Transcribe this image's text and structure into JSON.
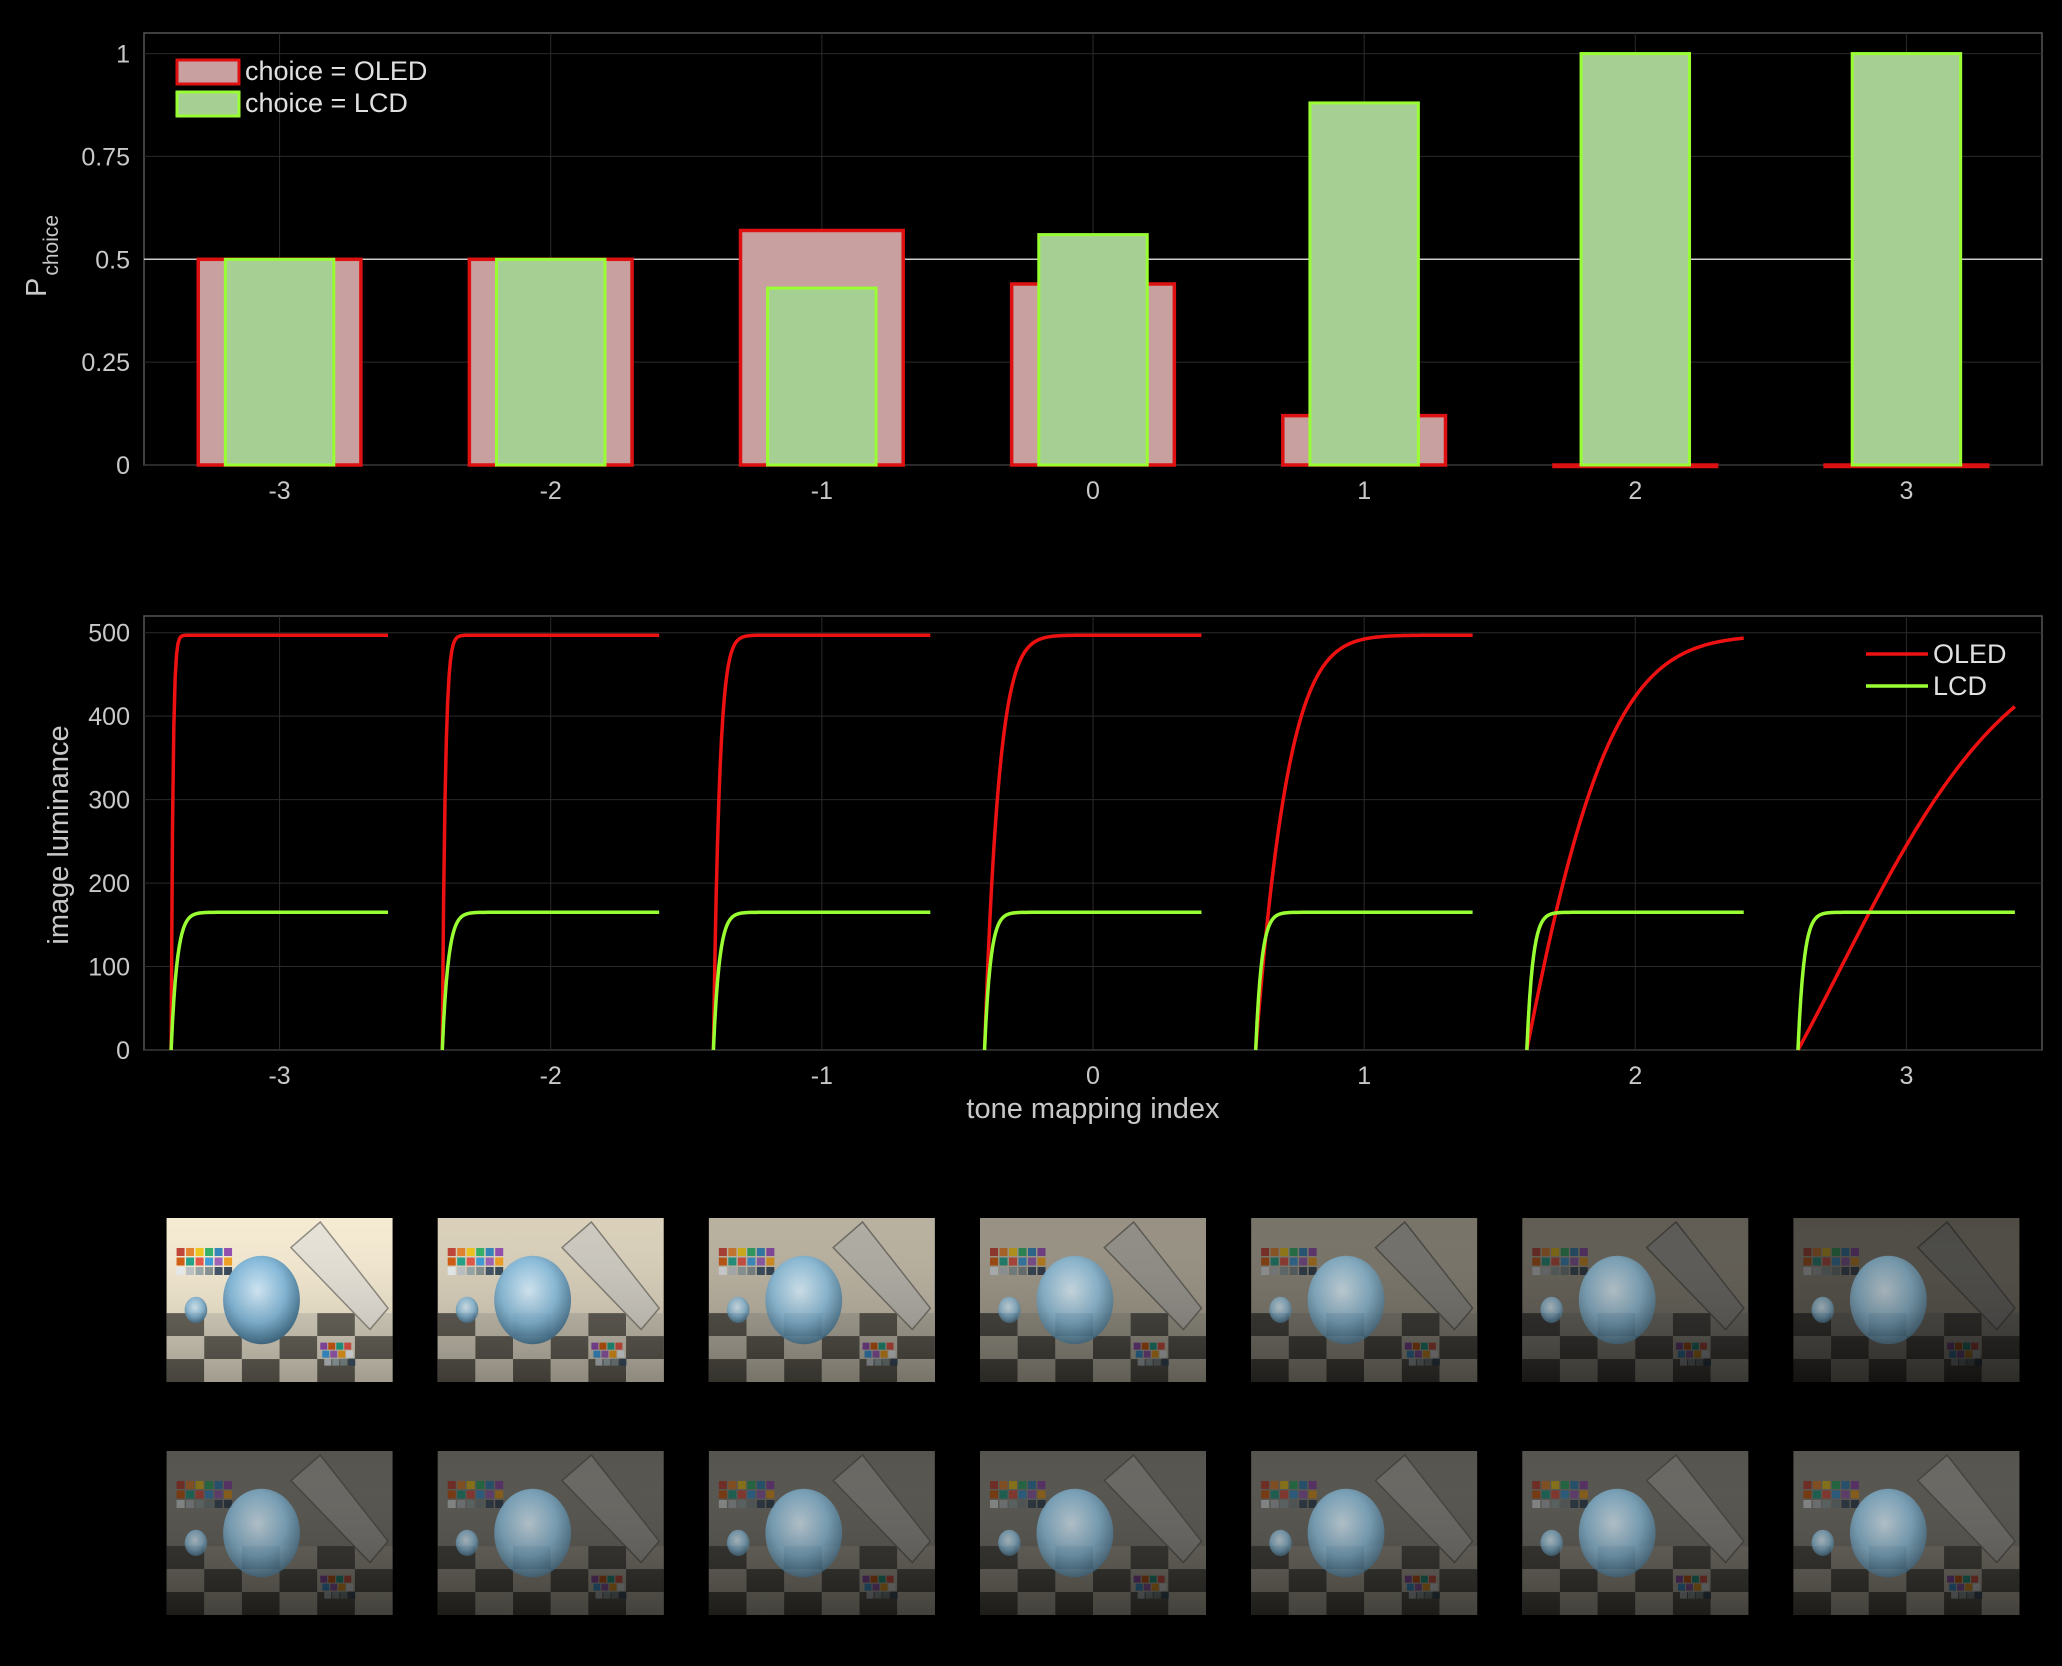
{
  "chart_data": [
    {
      "type": "bar",
      "categories": [
        "-3",
        "-2",
        "-1",
        "0",
        "1",
        "2",
        "3"
      ],
      "x": [
        -3,
        -2,
        -1,
        0,
        1,
        2,
        3
      ],
      "series": [
        {
          "name": "choice = OLED",
          "values": [
            0.5,
            0.5,
            0.57,
            0.44,
            0.12,
            0.0,
            0.0
          ],
          "color": "#c9a0a0",
          "edge": "#dd1111"
        },
        {
          "name": "choice = LCD",
          "values": [
            0.5,
            0.5,
            0.43,
            0.56,
            0.88,
            1.0,
            1.0
          ],
          "color": "#a6cf94",
          "edge": "#99ff33"
        }
      ],
      "ylabel": "P",
      "ylabel_sub": "choice",
      "ylim": [
        0,
        1.05
      ],
      "yticks": [
        0,
        0.25,
        0.5,
        0.75,
        1
      ],
      "ytick_labels": [
        "0",
        "0.25",
        "0.5",
        "0.75",
        "1"
      ],
      "xticks": [
        "-3",
        "-2",
        "-1",
        "0",
        "1",
        "2",
        "3"
      ],
      "reference_line": 0.5,
      "grid": true,
      "legend": "top-left"
    },
    {
      "type": "line",
      "xlabel": "tone mapping index",
      "ylabel": "image luminance",
      "xlim": [
        -3.5,
        3.5
      ],
      "ylim": [
        0,
        520
      ],
      "yticks": [
        0,
        100,
        200,
        300,
        400,
        500
      ],
      "ytick_labels": [
        "0",
        "100",
        "200",
        "300",
        "400",
        "500"
      ],
      "xticks": [
        "-3",
        "-2",
        "-1",
        "0",
        "1",
        "2",
        "3"
      ],
      "series": [
        {
          "name": "OLED",
          "color": "#ee1111",
          "max": 497,
          "steepness": [
            200,
            120,
            60,
            25,
            11,
            4.5,
            1.6
          ]
        },
        {
          "name": "LCD",
          "color": "#99ff33",
          "max": 165,
          "steepness": [
            60,
            60,
            60,
            60,
            60,
            60,
            60
          ]
        }
      ],
      "curve_span": [
        -0.4,
        0.4
      ],
      "grid": true,
      "legend": "top-right"
    }
  ],
  "thumbnails": {
    "description_rows": 2,
    "row_oled": [
      {
        "index": "-3",
        "brightness": 1.0
      },
      {
        "index": "-2",
        "brightness": 0.88
      },
      {
        "index": "-1",
        "brightness": 0.74
      },
      {
        "index": "0",
        "brightness": 0.6
      },
      {
        "index": "1",
        "brightness": 0.46
      },
      {
        "index": "2",
        "brightness": 0.36
      },
      {
        "index": "3",
        "brightness": 0.28
      }
    ],
    "row_lcd": [
      {
        "index": "-3",
        "brightness": 0.42
      },
      {
        "index": "-2",
        "brightness": 0.42
      },
      {
        "index": "-1",
        "brightness": 0.42
      },
      {
        "index": "0",
        "brightness": 0.42
      },
      {
        "index": "1",
        "brightness": 0.42
      },
      {
        "index": "2",
        "brightness": 0.42
      },
      {
        "index": "3",
        "brightness": 0.42
      }
    ]
  }
}
